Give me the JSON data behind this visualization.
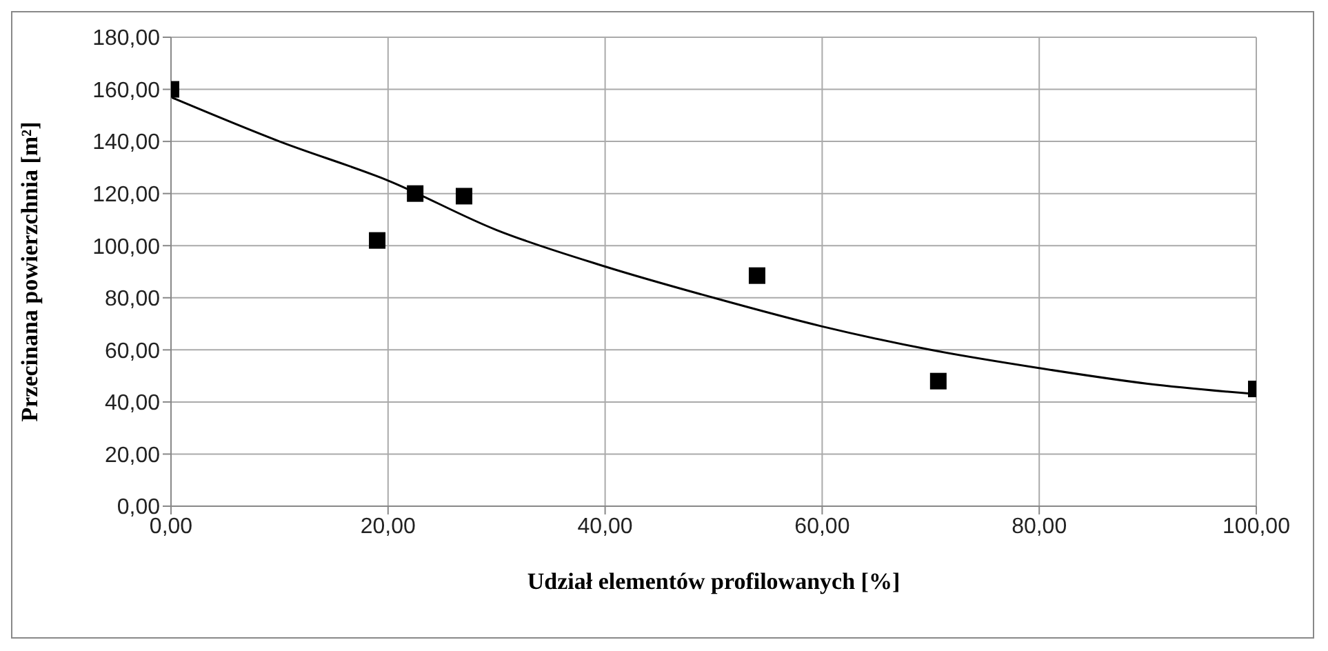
{
  "chart_data": {
    "type": "scatter",
    "xlabel": "Udział elementów profilowanych [%]",
    "ylabel": "Przecinana powierzchnia [m²]",
    "xlim": [
      0,
      100
    ],
    "xticks": [
      {
        "value": 0,
        "label": "0,00"
      },
      {
        "value": 20,
        "label": "20,00"
      },
      {
        "value": 40,
        "label": "40,00"
      },
      {
        "value": 60,
        "label": "60,00"
      },
      {
        "value": 80,
        "label": "80,00"
      },
      {
        "value": 100,
        "label": "100,00"
      }
    ],
    "ylim": [
      0,
      180
    ],
    "yticks": [
      {
        "value": 0,
        "label": "0,00"
      },
      {
        "value": 20,
        "label": "20,00"
      },
      {
        "value": 40,
        "label": "40,00"
      },
      {
        "value": 60,
        "label": "60,00"
      },
      {
        "value": 80,
        "label": "80,00"
      },
      {
        "value": 100,
        "label": "100,00"
      },
      {
        "value": 120,
        "label": "120,00"
      },
      {
        "value": 140,
        "label": "140,00"
      },
      {
        "value": 160,
        "label": "160,00"
      },
      {
        "value": 180,
        "label": "180,00"
      }
    ],
    "grid": true,
    "legend": false,
    "marker": "square",
    "series": [
      {
        "color": "#000000",
        "x": [
          0,
          19,
          22.5,
          27,
          54,
          70.7,
          100
        ],
        "values": [
          160,
          102,
          120,
          119,
          88.5,
          48,
          45
        ]
      },
      {
        "type": "line",
        "color": "#000000",
        "marker": "none",
        "line_style": "solid",
        "x": [
          0,
          10,
          20,
          30,
          40,
          50,
          60,
          70,
          80,
          90,
          100
        ],
        "values": [
          157,
          140,
          125,
          106,
          92,
          80,
          69,
          60,
          53,
          47,
          43
        ]
      }
    ]
  }
}
